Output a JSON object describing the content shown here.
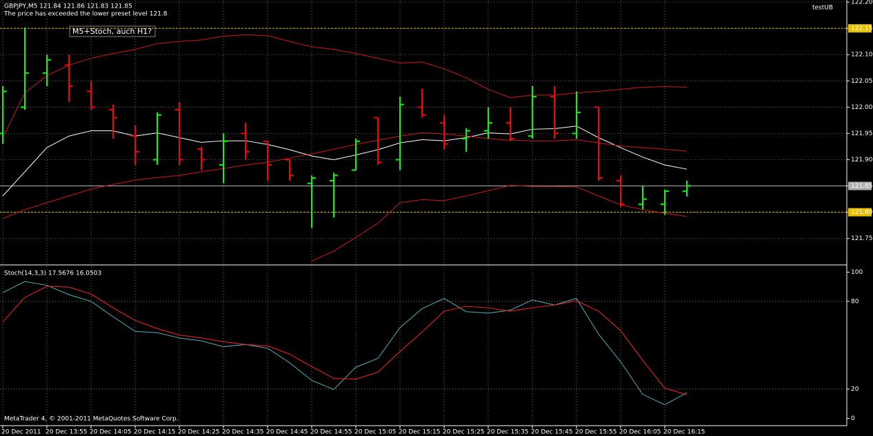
{
  "chart_data": [
    {
      "type": "ohlc",
      "title": "GBPJPY,M5  121.84 121.86 121.83 121.85",
      "alert": "The price has exceeded the lower preset level 121.8",
      "expert": "testUB",
      "annotation": "M5+Stoch, auch H1?",
      "up_color": "#00ff00",
      "down_color": "#ff0000",
      "categories": [
        "20 Dec 2011",
        null,
        "20 Dec 13:55",
        null,
        "20 Dec 14:05",
        null,
        "20 Dec 14:15",
        null,
        "20 Dec 14:25",
        null,
        "20 Dec 14:35",
        null,
        "20 Dec 14:45",
        null,
        "20 Dec 14:55",
        null,
        "20 Dec 15:05",
        null,
        "20 Dec 15:15",
        null,
        "20 Dec 15:25",
        null,
        "20 Dec 15:35",
        null,
        "20 Dec 15:45",
        null,
        "20 Dec 15:55",
        null,
        "20 Dec 16:05",
        null,
        "20 Dec 16:15",
        null
      ],
      "open": [
        121.95,
        122.0,
        122.065,
        122.08,
        122.03,
        121.995,
        121.945,
        121.9,
        121.995,
        121.92,
        121.89,
        121.95,
        121.935,
        121.9,
        121.855,
        121.86,
        121.88,
        121.98,
        121.9,
        122.0,
        121.97,
        121.94,
        121.955,
        121.97,
        121.945,
        122.02,
        121.95,
        122.0,
        121.86,
        121.815,
        121.815,
        121.84
      ],
      "high": [
        122.04,
        122.152,
        122.1,
        122.1,
        122.05,
        122.005,
        121.965,
        121.99,
        122.01,
        121.925,
        121.95,
        121.97,
        121.935,
        121.9,
        121.87,
        121.875,
        121.94,
        121.98,
        122.02,
        122.035,
        121.985,
        121.96,
        122.0,
        122.0,
        122.04,
        122.04,
        122.03,
        122.0,
        121.87,
        121.85,
        121.843,
        121.86
      ],
      "low": [
        121.93,
        121.995,
        122.04,
        122.01,
        121.995,
        121.94,
        121.89,
        121.89,
        121.89,
        121.88,
        121.855,
        121.9,
        121.86,
        121.86,
        121.77,
        121.79,
        121.88,
        121.89,
        121.88,
        121.98,
        121.92,
        121.915,
        121.94,
        121.935,
        121.94,
        121.94,
        121.94,
        121.86,
        121.81,
        121.805,
        121.795,
        121.83
      ],
      "close": [
        122.03,
        122.065,
        122.09,
        122.04,
        122.0,
        121.98,
        121.915,
        121.985,
        121.9,
        121.9,
        121.935,
        121.915,
        121.89,
        121.87,
        121.865,
        121.87,
        121.935,
        121.895,
        122.005,
        121.985,
        121.93,
        121.955,
        121.97,
        121.94,
        122.02,
        121.95,
        121.99,
        121.865,
        121.815,
        121.825,
        121.84,
        121.85
      ],
      "series": [
        {
          "color": "#d01818",
          "values": [
            121.942,
            122.027,
            122.06,
            122.08,
            122.093,
            122.102,
            122.11,
            122.121,
            122.125,
            122.128,
            122.135,
            122.138,
            122.136,
            122.125,
            122.115,
            122.11,
            122.102,
            122.093,
            122.084,
            122.086,
            122.073,
            122.056,
            122.034,
            122.018,
            122.023,
            122.023,
            122.027,
            122.03,
            122.034,
            122.038,
            122.039,
            122.038
          ]
        },
        {
          "color": "#ffffff",
          "values": [
            121.831,
            121.877,
            121.923,
            121.945,
            121.955,
            121.955,
            121.945,
            121.951,
            121.942,
            121.933,
            121.936,
            121.936,
            121.929,
            121.919,
            121.907,
            121.9,
            121.909,
            121.919,
            121.932,
            121.938,
            121.936,
            121.942,
            121.951,
            121.949,
            121.958,
            121.959,
            121.964,
            121.942,
            121.923,
            121.905,
            121.89,
            121.882
          ]
        },
        {
          "color": "#d01818",
          "values": [
            null,
            null,
            null,
            null,
            null,
            null,
            null,
            null,
            null,
            null,
            null,
            null,
            null,
            null,
            121.707,
            121.726,
            121.752,
            121.779,
            121.818,
            121.824,
            121.822,
            121.831,
            121.841,
            121.851,
            121.849,
            121.849,
            121.848,
            121.831,
            121.814,
            121.805,
            121.798,
            121.792
          ]
        },
        {
          "color": "#d01818",
          "values": [
            121.788,
            121.805,
            121.818,
            121.831,
            121.844,
            121.853,
            121.861,
            121.866,
            121.87,
            121.877,
            121.883,
            121.89,
            121.895,
            121.903,
            121.911,
            121.92,
            121.929,
            121.937,
            121.945,
            121.951,
            121.949,
            121.945,
            121.94,
            121.937,
            121.936,
            121.936,
            121.938,
            121.932,
            121.926,
            121.923,
            121.92,
            121.916
          ]
        }
      ],
      "levels": [
        {
          "value": 122.15,
          "color": "#e8c000",
          "dashed": true
        },
        {
          "value": 121.8,
          "color": "#e8c000",
          "dashed": true
        },
        {
          "value": 121.85,
          "color": "#b0b0b0",
          "dashed": false
        }
      ],
      "ylim": [
        121.701,
        122.204
      ],
      "yticks": [
        {
          "value": 122.2,
          "label": "122.20"
        },
        {
          "value": 122.15,
          "label": "122.15"
        },
        {
          "value": 122.1,
          "label": "122.10"
        },
        {
          "value": 122.05,
          "label": "122.05"
        },
        {
          "value": 122.0,
          "label": "122.00"
        },
        {
          "value": 121.95,
          "label": "121.95"
        },
        {
          "value": 121.9,
          "label": "121.90"
        },
        {
          "value": 121.85,
          "label": "121.85"
        },
        {
          "value": 121.8,
          "label": "121.80"
        },
        {
          "value": 121.75,
          "label": "121.75"
        }
      ],
      "grid": true
    },
    {
      "type": "line",
      "title": "Stoch(14,3,3) 17.5676 16.0503",
      "footer": "MetaTrader 4, © 2001-2011 MetaQuotes Software Corp.",
      "series": [
        {
          "color": "#4fb0b8",
          "values": [
            86,
            93.6,
            91,
            84.6,
            80,
            69.5,
            59.5,
            58.6,
            55,
            53,
            49,
            50.5,
            48,
            38,
            26,
            19.7,
            35,
            41,
            62,
            75,
            82,
            73,
            72,
            74,
            81,
            77.5,
            82,
            57.6,
            38.7,
            16.4,
            9.3,
            17.5676
          ]
        },
        {
          "color": "#ff2020",
          "values": [
            66,
            82.7,
            90.3,
            89.8,
            85,
            75.6,
            67,
            61.4,
            57,
            55,
            52.4,
            50.5,
            49.6,
            43.9,
            35.4,
            27.3,
            26.8,
            31.6,
            45.8,
            59,
            73.3,
            76.6,
            75.6,
            73.3,
            75.6,
            77.5,
            80.4,
            73.3,
            60,
            39.6,
            20.7,
            16.0503
          ]
        }
      ],
      "levels": [
        80,
        20
      ],
      "ylim": [
        -5,
        104
      ],
      "yticks": [
        100,
        80,
        20,
        0
      ],
      "grid": true
    }
  ]
}
